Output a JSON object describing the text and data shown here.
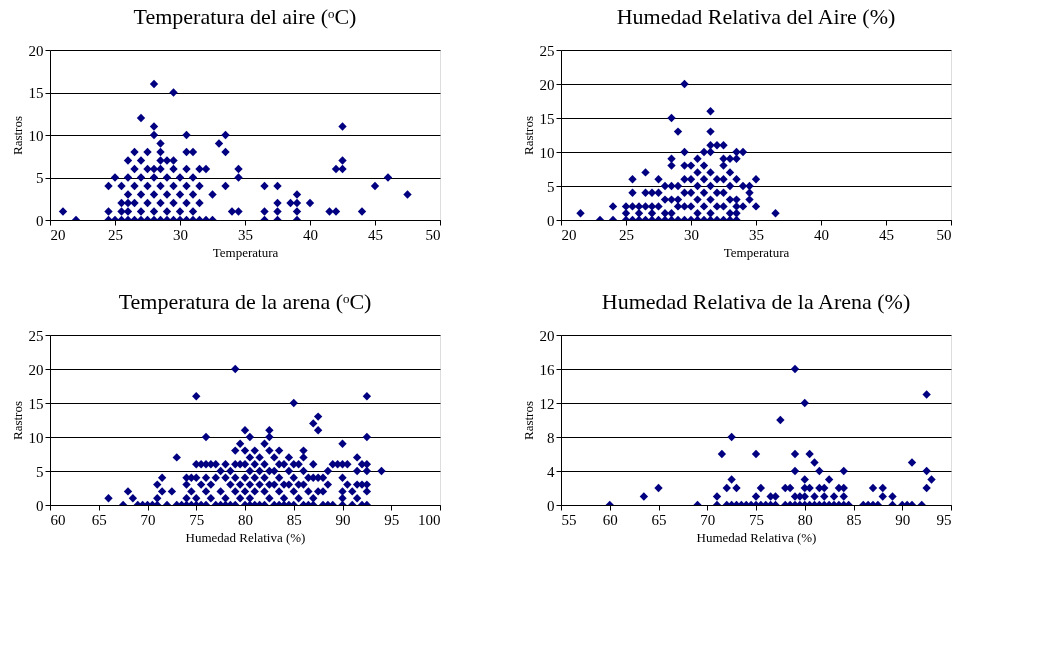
{
  "chart_data": [
    {
      "type": "scatter",
      "title": "Temperatura del aire (ᵒC)",
      "xlabel": "Temperatura",
      "ylabel": "Rastros",
      "marker": "diamond",
      "grid": "y",
      "xlim": [
        20,
        50
      ],
      "xticks": [
        20,
        25,
        30,
        35,
        40,
        45,
        50
      ],
      "ylim": [
        0,
        20
      ],
      "yticks": [
        0,
        5,
        10,
        15,
        20
      ],
      "series": [
        {
          "color": "#000080",
          "x": [
            21,
            22,
            24.5,
            24.5,
            24.5,
            25,
            25,
            25.5,
            25.5,
            25.5,
            25.5,
            26,
            26,
            26,
            26,
            26,
            26,
            26.5,
            26.5,
            26.5,
            26.5,
            26.5,
            27,
            27,
            27,
            27,
            27,
            27,
            27.5,
            27.5,
            27.5,
            27.5,
            27.5,
            28,
            28,
            28,
            28,
            28,
            28,
            28,
            28,
            28.5,
            28.5,
            28.5,
            28.5,
            28.5,
            28.5,
            28.5,
            29,
            29,
            29,
            29,
            29,
            29.5,
            29.5,
            29.5,
            29.5,
            29.5,
            29.5,
            30,
            30,
            30,
            30,
            30.5,
            30.5,
            30.5,
            30.5,
            30.5,
            30.5,
            31,
            31,
            31,
            31,
            31,
            31.5,
            31.5,
            31.5,
            31.5,
            32,
            32,
            32.5,
            32.5,
            33,
            33.5,
            33.5,
            33.5,
            34,
            34.5,
            34.5,
            34.5,
            36.5,
            36.5,
            36.5,
            37.5,
            37.5,
            37.5,
            37.5,
            38.5,
            39,
            39,
            39,
            39,
            40,
            41.5,
            42,
            42,
            42.5,
            42.5,
            42.5,
            44,
            45,
            46,
            47.5
          ],
          "values": [
            1,
            0,
            4,
            1,
            0,
            5,
            0,
            4,
            0,
            1,
            2,
            7,
            5,
            3,
            2,
            1,
            0,
            8,
            6,
            4,
            2,
            0,
            12,
            7,
            5,
            3,
            1,
            0,
            8,
            6,
            4,
            2,
            0,
            16,
            11,
            10,
            6,
            5,
            3,
            1,
            0,
            9,
            8,
            7,
            6,
            4,
            2,
            0,
            7,
            5,
            3,
            1,
            0,
            15,
            7,
            6,
            4,
            2,
            0,
            5,
            3,
            1,
            0,
            10,
            8,
            6,
            4,
            2,
            0,
            8,
            5,
            3,
            1,
            0,
            6,
            4,
            2,
            0,
            6,
            0,
            3,
            0,
            9,
            10,
            8,
            4,
            1,
            6,
            5,
            1,
            4,
            1,
            0,
            4,
            2,
            1,
            0,
            2,
            3,
            2,
            1,
            0,
            2,
            1,
            6,
            1,
            11,
            7,
            6,
            1,
            4,
            5,
            3
          ]
        }
      ]
    },
    {
      "type": "scatter",
      "title": "Humedad Relativa del  Aire (%)",
      "xlabel": "Temperatura",
      "ylabel": "Rastros",
      "marker": "diamond",
      "grid": "y",
      "xlim": [
        20,
        50
      ],
      "xticks": [
        20,
        25,
        30,
        35,
        40,
        45,
        50
      ],
      "ylim": [
        0,
        25
      ],
      "yticks": [
        0,
        5,
        10,
        15,
        20,
        25
      ],
      "series": [
        {
          "color": "#000080",
          "x": [
            21.5,
            23,
            24,
            24,
            25,
            25,
            25,
            25.5,
            25.5,
            25.5,
            25.5,
            26,
            26,
            26,
            26.5,
            26.5,
            26.5,
            26.5,
            27,
            27,
            27,
            27,
            27.5,
            27.5,
            27.5,
            27.5,
            28,
            28,
            28,
            28,
            28.5,
            28.5,
            28.5,
            28.5,
            28.5,
            28.5,
            28.5,
            29,
            29,
            29,
            29,
            29,
            29.5,
            29.5,
            29.5,
            29.5,
            29.5,
            29.5,
            29.5,
            30,
            30,
            30,
            30,
            30,
            30.5,
            30.5,
            30.5,
            30.5,
            30.5,
            30.5,
            31,
            31,
            31,
            31,
            31,
            31,
            31.5,
            31.5,
            31.5,
            31.5,
            31.5,
            31.5,
            31.5,
            31.5,
            31.5,
            32,
            32,
            32,
            32,
            32,
            32.5,
            32.5,
            32.5,
            32.5,
            32.5,
            32.5,
            32.5,
            33,
            33,
            33,
            33,
            33,
            33,
            33.5,
            33.5,
            33.5,
            33.5,
            33.5,
            33.5,
            33.5,
            34,
            34,
            34,
            34.5,
            34.5,
            34.5,
            35,
            35,
            36.5
          ],
          "values": [
            1,
            0,
            2,
            0,
            2,
            1,
            0,
            6,
            4,
            2,
            0,
            2,
            1,
            0,
            7,
            4,
            2,
            0,
            4,
            2,
            1,
            0,
            6,
            4,
            2,
            0,
            5,
            3,
            1,
            0,
            15,
            9,
            8,
            5,
            3,
            1,
            0,
            13,
            5,
            3,
            2,
            0,
            20,
            10,
            8,
            6,
            4,
            2,
            0,
            8,
            6,
            4,
            2,
            0,
            9,
            7,
            5,
            3,
            1,
            0,
            10,
            8,
            6,
            4,
            2,
            0,
            16,
            13,
            11,
            10,
            7,
            5,
            3,
            1,
            0,
            11,
            6,
            4,
            2,
            0,
            11,
            9,
            8,
            6,
            4,
            2,
            0,
            9,
            7,
            5,
            3,
            1,
            0,
            10,
            9,
            6,
            3,
            2,
            1,
            0,
            10,
            5,
            2,
            5,
            4,
            3,
            6,
            2,
            1
          ]
        }
      ]
    },
    {
      "type": "scatter",
      "title": "Temperatura de la arena (ᵒC)",
      "xlabel": "Humedad Relativa  (%)",
      "ylabel": "Rastros",
      "marker": "diamond",
      "grid": "y",
      "xlim": [
        60,
        100
      ],
      "xticks": [
        60,
        65,
        70,
        75,
        80,
        85,
        90,
        95,
        100
      ],
      "ylim": [
        0,
        25
      ],
      "yticks": [
        0,
        5,
        10,
        15,
        20,
        25
      ],
      "series": [
        {
          "color": "#000080",
          "x": [
            66,
            67.5,
            68,
            68.5,
            69,
            69.5,
            70,
            70.5,
            71,
            71,
            71,
            71.5,
            71.5,
            72,
            72.5,
            73,
            73,
            73.5,
            74,
            74,
            74,
            74,
            74.5,
            74.5,
            74.5,
            75,
            75,
            75,
            75,
            75,
            75.5,
            75.5,
            75.5,
            76,
            76,
            76,
            76,
            76,
            76.5,
            76.5,
            76.5,
            77,
            77,
            77,
            77.5,
            77.5,
            77.5,
            78,
            78,
            78,
            78,
            78.5,
            78.5,
            78.5,
            79,
            79,
            79,
            79,
            79,
            79,
            79.5,
            79.5,
            79.5,
            79.5,
            80,
            80,
            80,
            80,
            80,
            80,
            80.5,
            80.5,
            80.5,
            80.5,
            80.5,
            80.5,
            81,
            81,
            81,
            81,
            81,
            81.5,
            81.5,
            81.5,
            81.5,
            82,
            82,
            82,
            82,
            82,
            82.5,
            82.5,
            82.5,
            82.5,
            82.5,
            82.5,
            83,
            83,
            83,
            83,
            83.5,
            83.5,
            83.5,
            83.5,
            83.5,
            84,
            84,
            84,
            84,
            84.5,
            84.5,
            84.5,
            84.5,
            85,
            85,
            85,
            85,
            85,
            85.5,
            85.5,
            85.5,
            86,
            86,
            86,
            86,
            86,
            86.5,
            86.5,
            86.5,
            87,
            87,
            87,
            87,
            87,
            87.5,
            87.5,
            87.5,
            87.5,
            88,
            88,
            88,
            88.5,
            88.5,
            88.5,
            89,
            89,
            89.5,
            90,
            90,
            90,
            90,
            90,
            90,
            90.5,
            90.5,
            91,
            91,
            91.5,
            91.5,
            91.5,
            91.5,
            92,
            92,
            92,
            92.5,
            92.5,
            92.5,
            92.5,
            92.5,
            92.5,
            92.5,
            94
          ],
          "values": [
            1,
            0,
            2,
            1,
            0,
            0,
            0,
            0,
            3,
            1,
            0,
            4,
            2,
            0,
            2,
            7,
            0,
            0,
            4,
            3,
            1,
            0,
            4,
            2,
            0,
            16,
            6,
            4,
            1,
            0,
            6,
            3,
            0,
            10,
            6,
            4,
            2,
            0,
            6,
            3,
            1,
            6,
            4,
            0,
            5,
            2,
            0,
            6,
            4,
            1,
            0,
            5,
            3,
            0,
            20,
            8,
            6,
            4,
            2,
            0,
            9,
            6,
            3,
            1,
            11,
            8,
            6,
            4,
            2,
            0,
            10,
            7,
            5,
            3,
            1,
            0,
            8,
            6,
            4,
            2,
            0,
            7,
            5,
            3,
            0,
            9,
            6,
            4,
            2,
            0,
            11,
            10,
            8,
            5,
            3,
            1,
            7,
            5,
            3,
            0,
            8,
            6,
            4,
            2,
            0,
            6,
            3,
            1,
            0,
            7,
            5,
            3,
            0,
            15,
            6,
            4,
            2,
            0,
            6,
            3,
            1,
            8,
            7,
            5,
            3,
            0,
            4,
            2,
            0,
            12,
            6,
            4,
            1,
            0,
            13,
            11,
            4,
            2,
            4,
            2,
            0,
            5,
            3,
            0,
            6,
            0,
            6,
            9,
            6,
            4,
            2,
            1,
            0,
            6,
            3,
            2,
            0,
            7,
            5,
            3,
            1,
            6,
            3,
            0,
            16,
            10,
            6,
            5,
            3,
            2,
            0,
            5
          ]
        }
      ]
    },
    {
      "type": "scatter",
      "title": "Humedad Relativa de la Arena (%)",
      "xlabel": "Humedad Relativa  (%)",
      "ylabel": "Rastros",
      "marker": "diamond",
      "grid": "y",
      "xlim": [
        55,
        95
      ],
      "xticks": [
        55,
        60,
        65,
        70,
        75,
        80,
        85,
        90,
        95
      ],
      "ylim": [
        0,
        20
      ],
      "yticks": [
        0,
        4,
        8,
        12,
        16,
        20
      ],
      "series": [
        {
          "color": "#000080",
          "x": [
            60,
            63.5,
            65,
            69,
            71,
            71,
            71.5,
            72,
            72,
            72.5,
            72.5,
            72.5,
            73,
            73,
            73.5,
            74,
            74.5,
            75,
            75,
            75,
            75.5,
            75.5,
            76,
            76.5,
            76.5,
            77,
            77,
            77.5,
            78,
            78,
            78.5,
            78.5,
            79,
            79,
            79,
            79,
            79,
            79.5,
            79.5,
            80,
            80,
            80,
            80,
            80,
            80.5,
            80.5,
            80.5,
            81,
            81,
            81,
            81.5,
            81.5,
            81.5,
            82,
            82,
            82,
            82.5,
            82.5,
            83,
            83,
            83.5,
            83.5,
            84,
            84,
            84,
            84,
            84.5,
            86,
            86.5,
            87,
            87,
            87.5,
            88,
            88,
            89,
            89,
            90,
            90.5,
            91,
            91,
            92,
            92.5,
            92.5,
            92.5,
            93
          ],
          "values": [
            0,
            1,
            2,
            0,
            1,
            0,
            6,
            2,
            0,
            8,
            3,
            0,
            2,
            0,
            0,
            0,
            0,
            6,
            1,
            0,
            2,
            0,
            0,
            1,
            0,
            1,
            0,
            10,
            2,
            0,
            2,
            0,
            16,
            6,
            4,
            1,
            0,
            1,
            0,
            12,
            3,
            2,
            1,
            0,
            6,
            2,
            0,
            5,
            1,
            0,
            4,
            2,
            0,
            2,
            1,
            0,
            3,
            0,
            1,
            0,
            2,
            0,
            4,
            2,
            1,
            0,
            0,
            0,
            0,
            2,
            0,
            0,
            2,
            1,
            1,
            0,
            0,
            0,
            5,
            0,
            0,
            13,
            4,
            2,
            3
          ]
        }
      ]
    }
  ]
}
